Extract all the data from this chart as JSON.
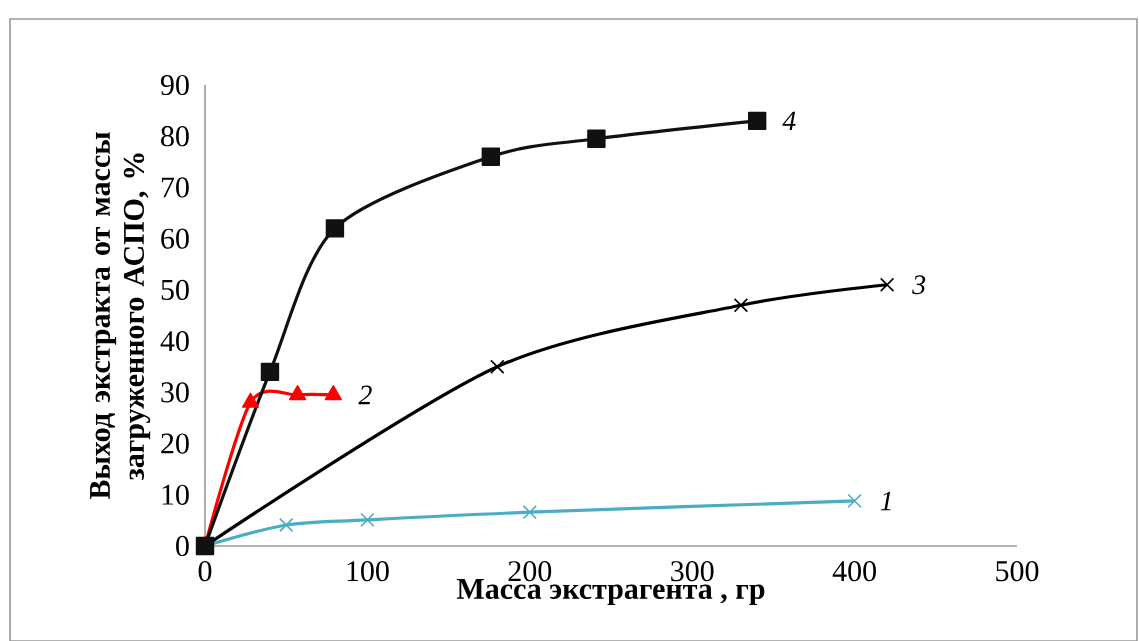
{
  "chart_data": {
    "type": "line",
    "xlabel": "Масса экстрагента , гр",
    "ylabel": "Выход экстракта от массы загруженного АСПО, %",
    "xlim": [
      0,
      500
    ],
    "ylim": [
      0,
      90
    ],
    "xticks": [
      0,
      100,
      200,
      300,
      400,
      500
    ],
    "yticks": [
      0,
      10,
      20,
      30,
      40,
      50,
      60,
      70,
      80,
      90
    ],
    "grid": false,
    "series": [
      {
        "name": "1",
        "color": "#4bacc6",
        "marker": "cross",
        "x": [
          0,
          50,
          100,
          200,
          400
        ],
        "values": [
          0,
          4.1,
          5.1,
          6.6,
          8.8
        ]
      },
      {
        "name": "2",
        "color": "#ff0000",
        "marker": "triangle",
        "x": [
          0,
          28,
          57,
          79
        ],
        "values": [
          0,
          28,
          29.5,
          29.5
        ]
      },
      {
        "name": "3",
        "color": "#000000",
        "marker": "cross",
        "x": [
          0,
          180,
          330,
          420
        ],
        "values": [
          0,
          35,
          47,
          51
        ]
      },
      {
        "name": "4",
        "color": "#111111",
        "marker": "square",
        "x": [
          0,
          40,
          80,
          176,
          241,
          340
        ],
        "values": [
          0,
          34,
          62,
          76,
          79.5,
          83
        ]
      }
    ]
  }
}
